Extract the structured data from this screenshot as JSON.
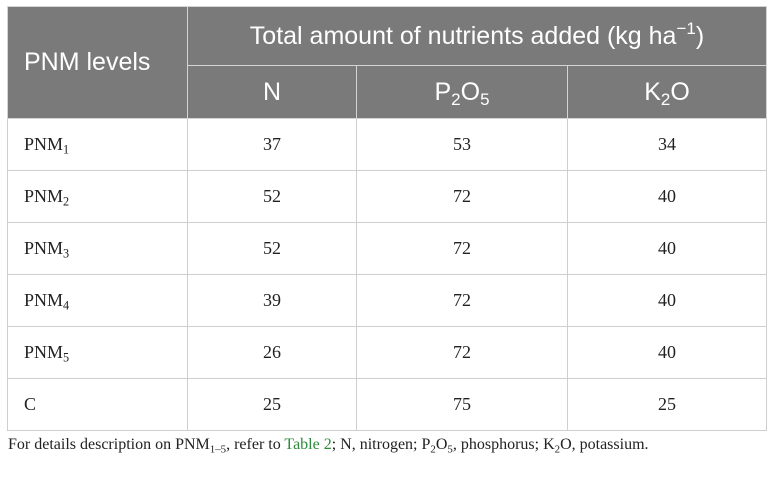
{
  "table": {
    "row_header": "PNM levels",
    "group_header": {
      "text": "Total amount of nutrients added (kg ha",
      "sup": "−1",
      "close": ")"
    },
    "columns": [
      {
        "base": "N",
        "parts": []
      },
      {
        "base": "P",
        "parts": [
          {
            "sub": "2"
          },
          {
            "text": "O"
          },
          {
            "sub": "5"
          }
        ]
      },
      {
        "base": "K",
        "parts": [
          {
            "sub": "2"
          },
          {
            "text": "O"
          }
        ]
      }
    ],
    "rows": [
      {
        "label": "PNM",
        "sub": "1",
        "values": [
          "37",
          "53",
          "34"
        ]
      },
      {
        "label": "PNM",
        "sub": "2",
        "values": [
          "52",
          "72",
          "40"
        ]
      },
      {
        "label": "PNM",
        "sub": "3",
        "values": [
          "52",
          "72",
          "40"
        ]
      },
      {
        "label": "PNM",
        "sub": "4",
        "values": [
          "39",
          "72",
          "40"
        ]
      },
      {
        "label": "PNM",
        "sub": "5",
        "values": [
          "26",
          "72",
          "40"
        ]
      },
      {
        "label": "C",
        "sub": "",
        "values": [
          "25",
          "75",
          "25"
        ]
      }
    ]
  },
  "footnote": {
    "p1": "For details description on PNM",
    "p1_sub": "1–5",
    "p2": ", refer to ",
    "link": "Table 2",
    "p3": "; N, nitrogen; P",
    "p3_sub1": "2",
    "p4": "O",
    "p4_sub": "5",
    "p5": ", phosphorus; K",
    "p5_sub": "2",
    "p6": "O, potassium."
  }
}
